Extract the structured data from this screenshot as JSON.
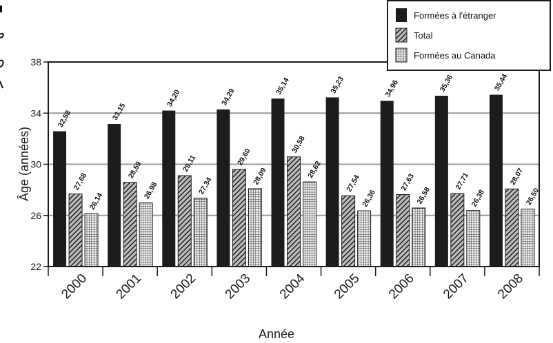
{
  "chart_data": {
    "type": "bar",
    "xlabel": "Année",
    "ylabel": "Âge (années)",
    "ylim": [
      22,
      38
    ],
    "yticks": [
      22,
      26,
      30,
      34,
      38
    ],
    "ytick_labels": [
      "22",
      "26",
      "30",
      "34",
      "38"
    ],
    "grid": true,
    "legend_position": "top-right",
    "categories": [
      "2000",
      "2001",
      "2002",
      "2003",
      "2004",
      "2005",
      "2006",
      "2007",
      "2008"
    ],
    "series": [
      {
        "name": "Formées à l'étranger",
        "pattern": "solid",
        "color": "#1c1c1c",
        "values": [
          32.58,
          33.15,
          34.2,
          34.29,
          35.14,
          35.23,
          34.96,
          35.36,
          35.44
        ],
        "labels": [
          "32,58",
          "33,15",
          "34,20",
          "34,29",
          "35,14",
          "35,23",
          "34,96",
          "35,36",
          "35,44"
        ]
      },
      {
        "name": "Total",
        "pattern": "diagonal-hatch",
        "color": "#2a2a2a",
        "values": [
          27.68,
          28.59,
          29.11,
          29.6,
          30.58,
          27.54,
          27.63,
          27.71,
          28.07
        ],
        "labels": [
          "27,68",
          "28,59",
          "29,11",
          "29,60",
          "30,58",
          "27,54",
          "27,63",
          "27,71",
          "28,07"
        ]
      },
      {
        "name": "Formées au Canada",
        "pattern": "crosshatch",
        "color": "#3a3a3a",
        "values": [
          26.14,
          26.98,
          27.34,
          28.09,
          28.62,
          26.36,
          26.58,
          26.38,
          26.5
        ],
        "labels": [
          "26,14",
          "26,98",
          "27,34",
          "28,09",
          "28,62",
          "26,36",
          "26,58",
          "26,38",
          "26,50"
        ]
      }
    ]
  }
}
